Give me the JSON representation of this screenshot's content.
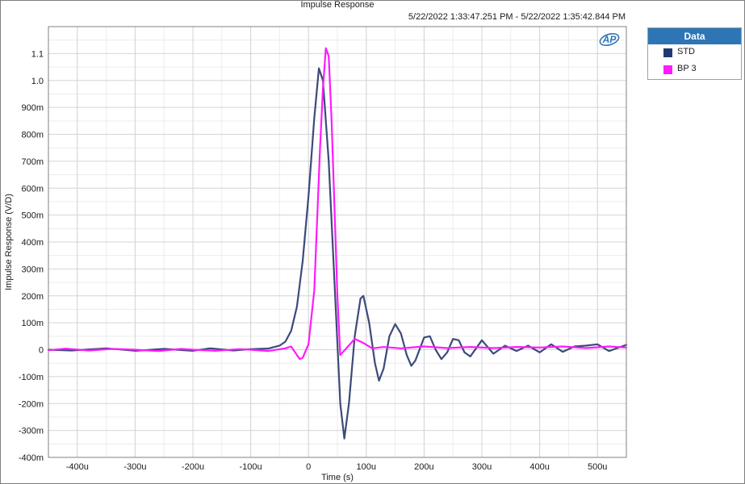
{
  "chart_data": {
    "type": "line",
    "title": "Impulse Response",
    "subtitle": "5/22/2022 1:33:47.251 PM - 5/22/2022 1:35:42.844 PM",
    "xlabel": "Time (s)",
    "ylabel": "Impulse Response (V/D)",
    "xlim": [
      -0.00045,
      0.00055
    ],
    "ylim": [
      -0.4,
      1.2
    ],
    "grid": true,
    "legend_position": "right",
    "x_ticks": [
      -0.0004,
      -0.0003,
      -0.0002,
      -0.0001,
      0,
      0.0001,
      0.0002,
      0.0003,
      0.0004,
      0.0005
    ],
    "x_tick_labels": [
      "-400u",
      "-300u",
      "-200u",
      "-100u",
      "0",
      "100u",
      "200u",
      "300u",
      "400u",
      "500u"
    ],
    "y_ticks": [
      -0.4,
      -0.3,
      -0.2,
      -0.1,
      0,
      0.1,
      0.2,
      0.3,
      0.4,
      0.5,
      0.6,
      0.7,
      0.8,
      0.9,
      1.0,
      1.1
    ],
    "y_tick_labels": [
      "-400m",
      "-300m",
      "-200m",
      "-100m",
      "0",
      "100m",
      "200m",
      "300m",
      "400m",
      "500m",
      "600m",
      "700m",
      "800m",
      "900m",
      "1.0",
      "1.1"
    ],
    "series": [
      {
        "name": "STD",
        "color": "#3b4a7a",
        "points": [
          [
            -0.00045,
            0
          ],
          [
            -0.00041,
            -0.003
          ],
          [
            -0.00035,
            0.005
          ],
          [
            -0.0003,
            -0.004
          ],
          [
            -0.00025,
            0.003
          ],
          [
            -0.0002,
            -0.004
          ],
          [
            -0.00017,
            0.005
          ],
          [
            -0.00013,
            -0.003
          ],
          [
            -0.0001,
            0.002
          ],
          [
            -7e-05,
            0.004
          ],
          [
            -5e-05,
            0.015
          ],
          [
            -4e-05,
            0.03
          ],
          [
            -3e-05,
            0.07
          ],
          [
            -2e-05,
            0.16
          ],
          [
            -1e-05,
            0.33
          ],
          [
            0,
            0.57
          ],
          [
            1e-05,
            0.86
          ],
          [
            1.8e-05,
            1.045
          ],
          [
            2.5e-05,
            1.0
          ],
          [
            3.5e-05,
            0.7
          ],
          [
            4.5e-05,
            0.25
          ],
          [
            5.5e-05,
            -0.2
          ],
          [
            6.2e-05,
            -0.33
          ],
          [
            7e-05,
            -0.2
          ],
          [
            8e-05,
            0.05
          ],
          [
            9e-05,
            0.19
          ],
          [
            9.5e-05,
            0.2
          ],
          [
            0.000105,
            0.1
          ],
          [
            0.000115,
            -0.05
          ],
          [
            0.000122,
            -0.115
          ],
          [
            0.00013,
            -0.07
          ],
          [
            0.00014,
            0.05
          ],
          [
            0.00015,
            0.095
          ],
          [
            0.00016,
            0.06
          ],
          [
            0.00017,
            -0.02
          ],
          [
            0.000178,
            -0.06
          ],
          [
            0.000185,
            -0.04
          ],
          [
            0.0002,
            0.045
          ],
          [
            0.00021,
            0.05
          ],
          [
            0.00022,
            0.0
          ],
          [
            0.00023,
            -0.035
          ],
          [
            0.00024,
            -0.01
          ],
          [
            0.00025,
            0.04
          ],
          [
            0.00026,
            0.035
          ],
          [
            0.00027,
            -0.01
          ],
          [
            0.00028,
            -0.025
          ],
          [
            0.0003,
            0.035
          ],
          [
            0.00032,
            -0.015
          ],
          [
            0.00034,
            0.015
          ],
          [
            0.00036,
            -0.005
          ],
          [
            0.00038,
            0.015
          ],
          [
            0.0004,
            -0.01
          ],
          [
            0.00042,
            0.02
          ],
          [
            0.00044,
            -0.008
          ],
          [
            0.00046,
            0.012
          ],
          [
            0.00048,
            0.015
          ],
          [
            0.0005,
            0.02
          ],
          [
            0.00052,
            -0.005
          ],
          [
            0.00055,
            0.018
          ]
        ]
      },
      {
        "name": "BP 3",
        "color": "#ff1aff",
        "points": [
          [
            -0.00045,
            -0.002
          ],
          [
            -0.00042,
            0.004
          ],
          [
            -0.00038,
            -0.003
          ],
          [
            -0.00034,
            0.003
          ],
          [
            -0.0003,
            0.0
          ],
          [
            -0.00026,
            -0.005
          ],
          [
            -0.00022,
            0.003
          ],
          [
            -0.0002,
            0.0
          ],
          [
            -0.00016,
            -0.004
          ],
          [
            -0.00012,
            0.002
          ],
          [
            -0.0001,
            0.0
          ],
          [
            -7e-05,
            -0.005
          ],
          [
            -4e-05,
            0.005
          ],
          [
            -3e-05,
            0.012
          ],
          [
            -2e-05,
            -0.02
          ],
          [
            -1.5e-05,
            -0.035
          ],
          [
            -1e-05,
            -0.03
          ],
          [
            0,
            0.02
          ],
          [
            1e-05,
            0.22
          ],
          [
            2e-05,
            0.75
          ],
          [
            2.5e-05,
            0.97
          ],
          [
            3e-05,
            1.12
          ],
          [
            3.5e-05,
            1.09
          ],
          [
            4e-05,
            0.85
          ],
          [
            5e-05,
            0.2
          ],
          [
            5.5e-05,
            -0.02
          ],
          [
            8e-05,
            0.04
          ],
          [
            9.5e-05,
            0.025
          ],
          [
            0.00011,
            0.005
          ],
          [
            0.00013,
            0.01
          ],
          [
            0.00016,
            0.005
          ],
          [
            0.0002,
            0.012
          ],
          [
            0.00024,
            0.006
          ],
          [
            0.00028,
            0.01
          ],
          [
            0.00032,
            0.006
          ],
          [
            0.00036,
            0.01
          ],
          [
            0.0004,
            0.008
          ],
          [
            0.00044,
            0.012
          ],
          [
            0.00048,
            0.006
          ],
          [
            0.00052,
            0.012
          ],
          [
            0.00055,
            0.008
          ]
        ]
      }
    ]
  },
  "legend": {
    "title": "Data",
    "items": [
      {
        "label": "STD",
        "color": "#1f3a73"
      },
      {
        "label": "BP 3",
        "color": "#ff1aff"
      }
    ]
  },
  "logo_text": "AP"
}
